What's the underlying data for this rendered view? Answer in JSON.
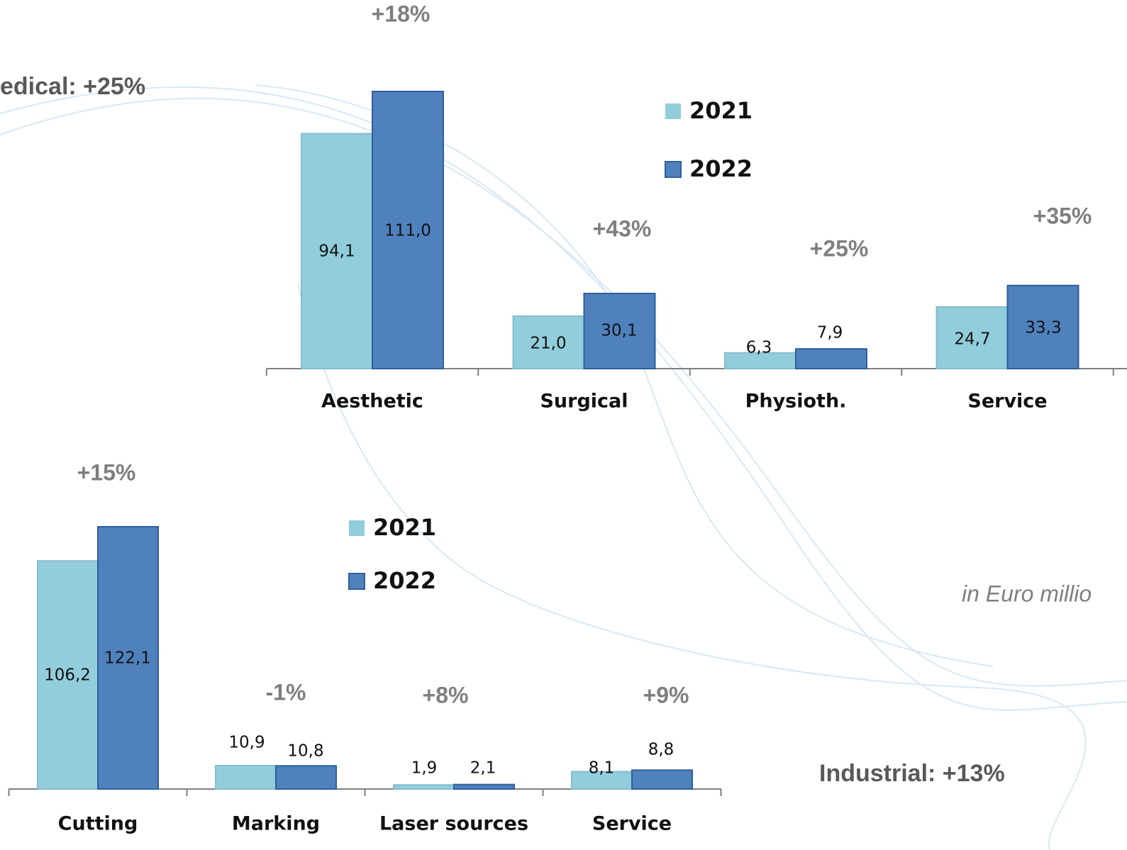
{
  "chart_data": [
    {
      "type": "bar",
      "title": "edical: +25%",
      "categories": [
        "Aesthetic",
        "Surgical",
        "Physioth.",
        "Service"
      ],
      "annotations": [
        "+18%",
        "+43%",
        "+25%",
        "+35%"
      ],
      "series": [
        {
          "name": "2021",
          "color": "#92cddc",
          "values": [
            94.1,
            21.0,
            6.3,
            24.7
          ],
          "value_labels": [
            "94,1",
            "21,0",
            "6,3",
            "24,7"
          ]
        },
        {
          "name": "2022",
          "color": "#4f81bd",
          "values": [
            111.0,
            30.1,
            7.9,
            33.3
          ],
          "value_labels": [
            "111,0",
            "30,1",
            "7,9",
            "33,3"
          ]
        }
      ]
    },
    {
      "type": "bar",
      "title": "Industrial: +13%",
      "categories": [
        "Cutting",
        "Marking",
        "Laser sources",
        "Service"
      ],
      "annotations": [
        "+15%",
        "-1%",
        "+8%",
        "+9%"
      ],
      "series": [
        {
          "name": "2021",
          "color": "#92cddc",
          "values": [
            106.2,
            10.9,
            1.9,
            8.1
          ],
          "value_labels": [
            "106,2",
            "10,9",
            "1,9",
            "8,1"
          ]
        },
        {
          "name": "2022",
          "color": "#4f81bd",
          "values": [
            122.1,
            10.8,
            2.1,
            8.8
          ],
          "value_labels": [
            "122,1",
            "10,8",
            "2,1",
            "8,8"
          ]
        }
      ]
    }
  ],
  "unit_note": "in Euro millio"
}
